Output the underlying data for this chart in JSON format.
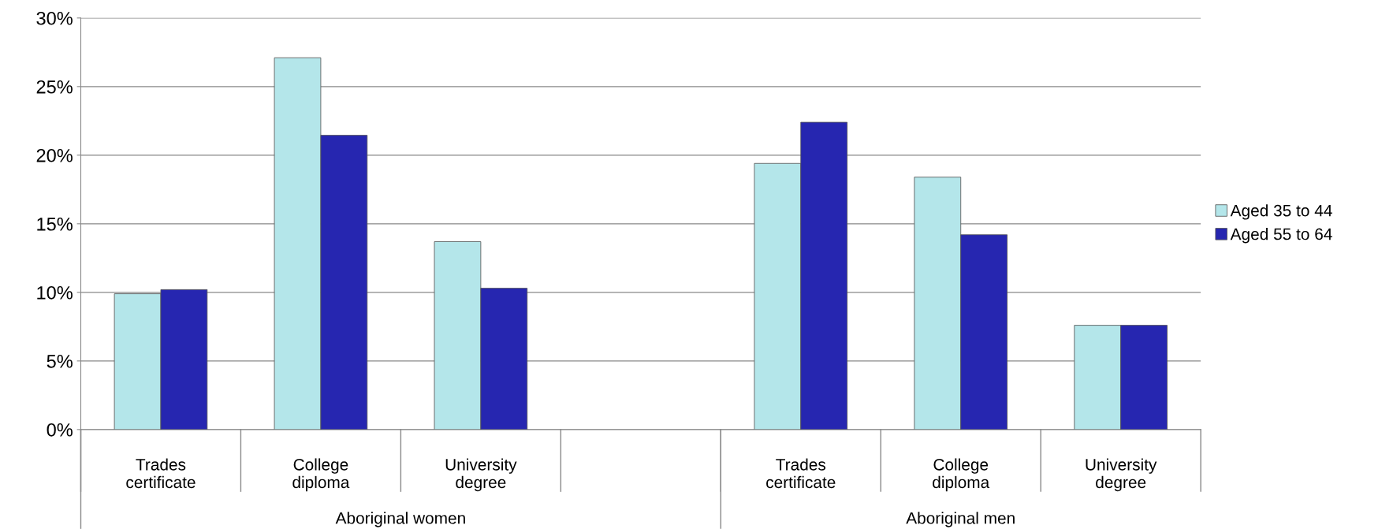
{
  "chart_data": {
    "type": "bar",
    "categories": [
      "Trades certificate",
      "College diploma",
      "University degree",
      null,
      "Trades certificate",
      "College diploma",
      "University degree"
    ],
    "series": [
      {
        "name": "Aged 35 to 44",
        "color": "#b4e6ea",
        "values": [
          9.9,
          27.1,
          13.7,
          null,
          19.4,
          18.4,
          7.6
        ]
      },
      {
        "name": "Aged 55 to 64",
        "color": "#2626b0",
        "values": [
          10.2,
          21.45,
          10.3,
          null,
          22.4,
          14.2,
          7.6
        ]
      }
    ],
    "annotations": [
      "Aboriginal women",
      "Aboriginal men"
    ],
    "ylim": [
      0,
      30
    ],
    "yticks": [
      {
        "value": 0,
        "label": "0%"
      },
      {
        "value": 5,
        "label": "5%"
      },
      {
        "value": 10,
        "label": "10%"
      },
      {
        "value": 15,
        "label": "15%"
      },
      {
        "value": 20,
        "label": "20%"
      },
      {
        "value": 25,
        "label": "25%"
      },
      {
        "value": 30,
        "label": "30%"
      }
    ],
    "grid": "y",
    "legend": "right"
  }
}
